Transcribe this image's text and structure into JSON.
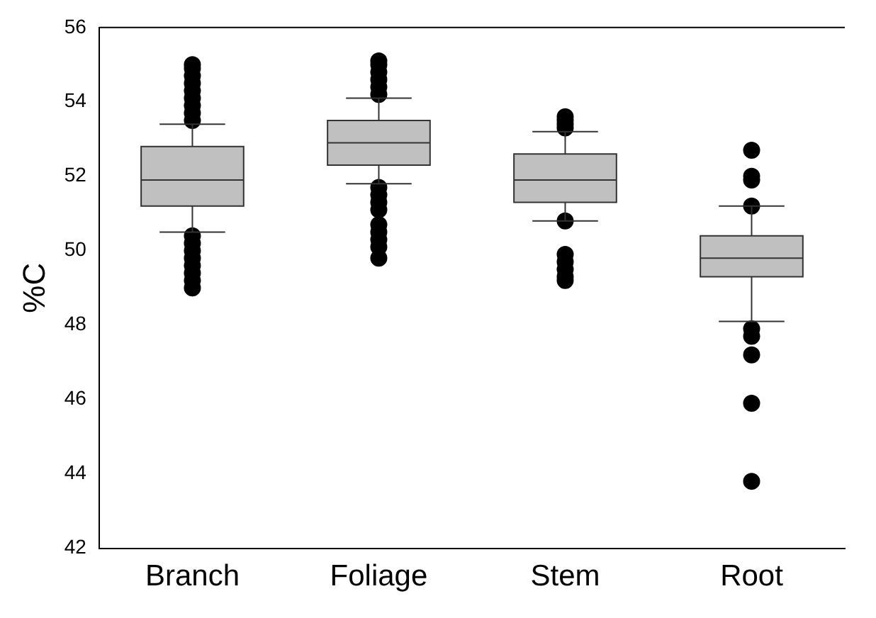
{
  "chart_data": {
    "type": "box",
    "ylabel": "%C",
    "categories": [
      "Branch",
      "Foliage",
      "Stem",
      "Root"
    ],
    "color": "#c0c0c0",
    "ylim": [
      42,
      56
    ],
    "yticks": [
      42,
      44,
      46,
      48,
      50,
      52,
      54,
      56
    ],
    "grid": false,
    "legend": false,
    "boxes": [
      {
        "low": 50.5,
        "q1": 51.2,
        "median": 51.9,
        "q3": 52.8,
        "high": 53.4,
        "outliers": [
          53.5,
          53.7,
          53.9,
          54.1,
          54.3,
          54.5,
          54.7,
          54.9,
          55.0,
          50.4,
          50.2,
          50.0,
          49.8,
          49.6,
          49.4,
          49.2,
          49.0
        ]
      },
      {
        "low": 51.8,
        "q1": 52.3,
        "median": 52.9,
        "q3": 53.5,
        "high": 54.1,
        "outliers": [
          54.2,
          54.4,
          54.6,
          54.8,
          55.0,
          55.1,
          51.7,
          51.5,
          51.3,
          51.1,
          50.7,
          50.5,
          50.3,
          50.1,
          49.8
        ]
      },
      {
        "low": 50.8,
        "q1": 51.3,
        "median": 51.9,
        "q3": 52.6,
        "high": 53.2,
        "outliers": [
          53.3,
          53.4,
          53.5,
          53.6,
          50.8,
          49.9,
          49.7,
          49.5,
          49.3,
          49.2
        ]
      },
      {
        "low": 48.1,
        "q1": 49.3,
        "median": 49.8,
        "q3": 50.4,
        "high": 51.2,
        "outliers": [
          51.2,
          51.9,
          52.0,
          52.7,
          47.9,
          47.7,
          47.2,
          45.9,
          43.8
        ]
      }
    ]
  }
}
